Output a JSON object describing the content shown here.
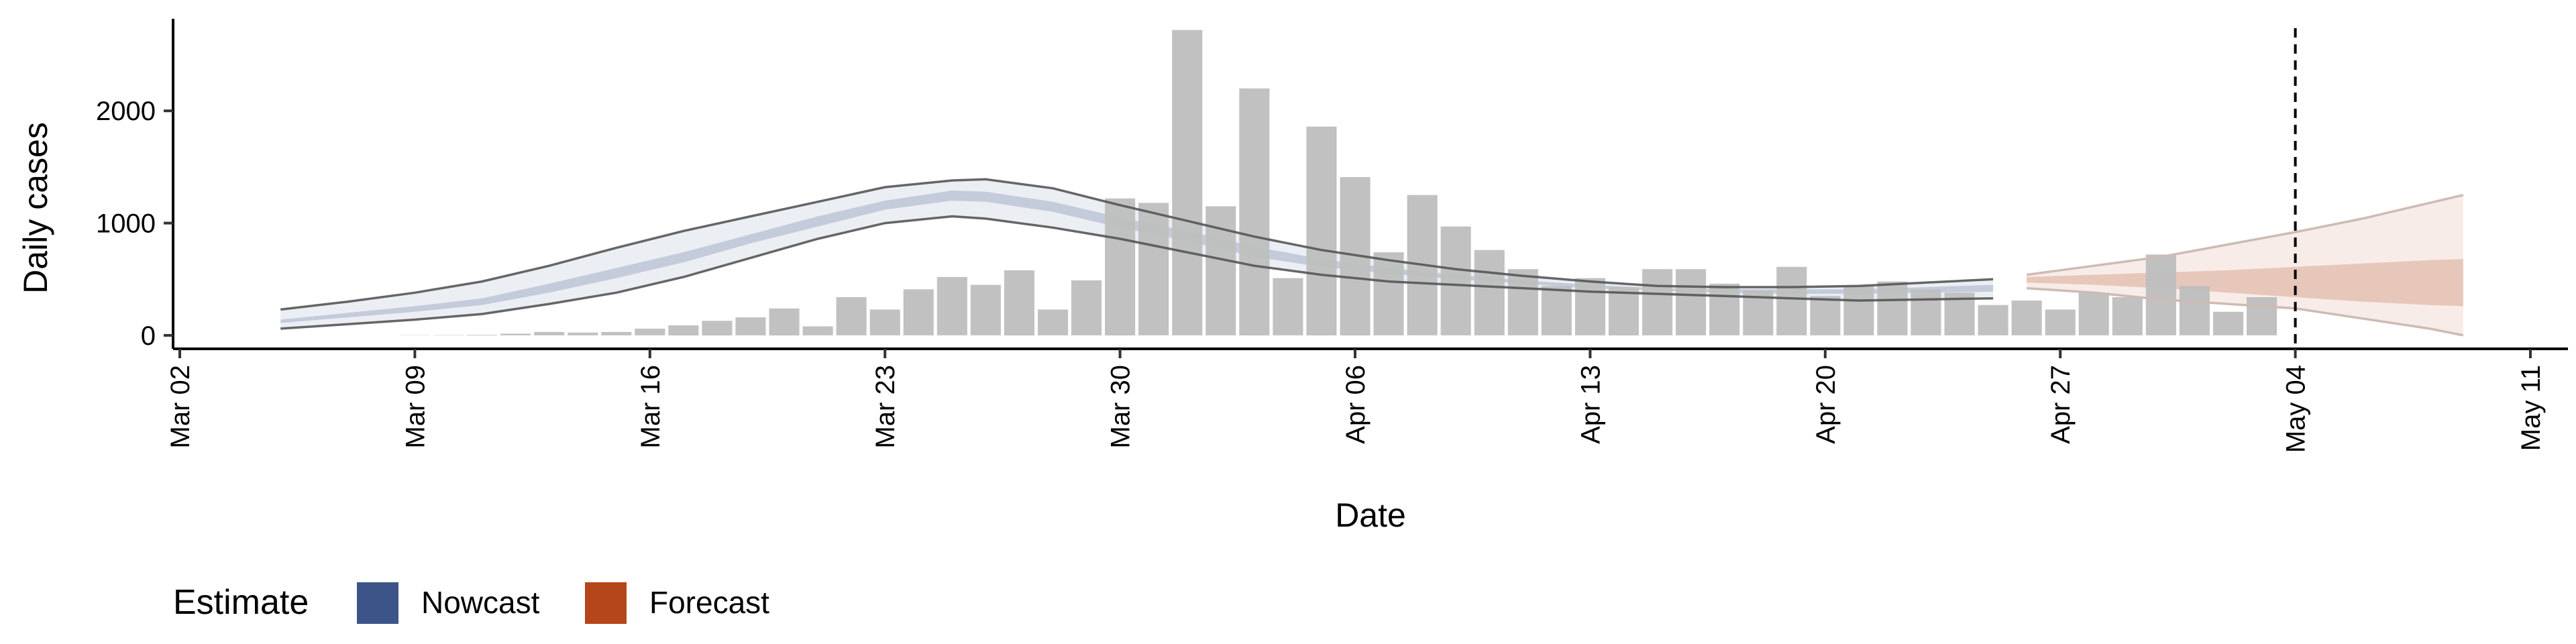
{
  "chart_data": {
    "type": "bar",
    "xlabel": "Date",
    "ylabel": "Daily cases",
    "x_range": [
      "2020-03-02",
      "2020-05-11"
    ],
    "ylim": [
      -120,
      2820
    ],
    "x_ticks": [
      {
        "date": "2020-03-02",
        "label": "Mar 02"
      },
      {
        "date": "2020-03-09",
        "label": "Mar 09"
      },
      {
        "date": "2020-03-16",
        "label": "Mar 16"
      },
      {
        "date": "2020-03-23",
        "label": "Mar 23"
      },
      {
        "date": "2020-03-30",
        "label": "Mar 30"
      },
      {
        "date": "2020-04-06",
        "label": "Apr 06"
      },
      {
        "date": "2020-04-13",
        "label": "Apr 13"
      },
      {
        "date": "2020-04-20",
        "label": "Apr 20"
      },
      {
        "date": "2020-04-27",
        "label": "Apr 27"
      },
      {
        "date": "2020-05-04",
        "label": "May 04"
      },
      {
        "date": "2020-05-11",
        "label": "May 11"
      }
    ],
    "y_ticks": [
      0,
      1000,
      2000
    ],
    "grid": false,
    "vline_date": "2020-05-04",
    "bars": {
      "start_date": "2020-03-09",
      "values": [
        2,
        3,
        5,
        15,
        30,
        25,
        30,
        60,
        90,
        130,
        160,
        240,
        80,
        340,
        230,
        410,
        520,
        450,
        580,
        230,
        490,
        1220,
        1180,
        2720,
        1150,
        2200,
        510,
        1860,
        1410,
        740,
        1250,
        970,
        760,
        590,
        440,
        510,
        430,
        590,
        590,
        460,
        400,
        610,
        350,
        440,
        480,
        410,
        380,
        270,
        310,
        230,
        380,
        340,
        720,
        440,
        210,
        340
      ],
      "color": "#bebebe"
    },
    "estimate_series": [
      {
        "name": "Nowcast",
        "color": "#3c5488",
        "dates": [
          "2020-03-05",
          "2020-03-07",
          "2020-03-09",
          "2020-03-11",
          "2020-03-13",
          "2020-03-15",
          "2020-03-17",
          "2020-03-19",
          "2020-03-21",
          "2020-03-23",
          "2020-03-25",
          "2020-03-26",
          "2020-03-28",
          "2020-03-30",
          "2020-04-01",
          "2020-04-03",
          "2020-04-05",
          "2020-04-07",
          "2020-04-09",
          "2020-04-11",
          "2020-04-13",
          "2020-04-15",
          "2020-04-17",
          "2020-04-19",
          "2020-04-21",
          "2020-04-23",
          "2020-04-25"
        ],
        "lower90": [
          60,
          100,
          140,
          190,
          280,
          380,
          520,
          690,
          860,
          1000,
          1060,
          1040,
          960,
          860,
          740,
          620,
          540,
          480,
          450,
          420,
          390,
          370,
          350,
          330,
          310,
          320,
          330
        ],
        "lower50": [
          110,
          160,
          210,
          270,
          380,
          510,
          650,
          820,
          970,
          1120,
          1200,
          1190,
          1100,
          960,
          840,
          700,
          610,
          550,
          500,
          460,
          420,
          400,
          380,
          370,
          370,
          380,
          390
        ],
        "upper50": [
          140,
          200,
          260,
          330,
          460,
          600,
          740,
          900,
          1060,
          1200,
          1290,
          1280,
          1190,
          1050,
          930,
          790,
          680,
          600,
          540,
          490,
          450,
          420,
          410,
          410,
          410,
          430,
          450
        ],
        "upper90": [
          230,
          300,
          380,
          480,
          620,
          780,
          930,
          1060,
          1190,
          1320,
          1380,
          1390,
          1310,
          1160,
          1020,
          880,
          760,
          670,
          590,
          530,
          480,
          440,
          430,
          430,
          440,
          470,
          500
        ]
      },
      {
        "name": "Forecast",
        "color": "#b5451b",
        "dates": [
          "2020-04-26",
          "2020-04-28",
          "2020-04-30",
          "2020-05-02",
          "2020-05-04",
          "2020-05-06",
          "2020-05-08",
          "2020-05-09"
        ],
        "lower90": [
          420,
          380,
          320,
          280,
          240,
          150,
          60,
          0
        ],
        "lower50": [
          470,
          450,
          420,
          380,
          340,
          300,
          270,
          260
        ],
        "upper50": [
          520,
          540,
          560,
          580,
          610,
          640,
          670,
          680
        ],
        "upper90": [
          540,
          620,
          700,
          810,
          920,
          1040,
          1180,
          1250
        ]
      }
    ],
    "legend": {
      "title": "Estimate",
      "placement": "bottom-left",
      "items": [
        {
          "label": "Nowcast",
          "color": "#3c5488"
        },
        {
          "label": "Forecast",
          "color": "#b5451b"
        }
      ]
    }
  }
}
